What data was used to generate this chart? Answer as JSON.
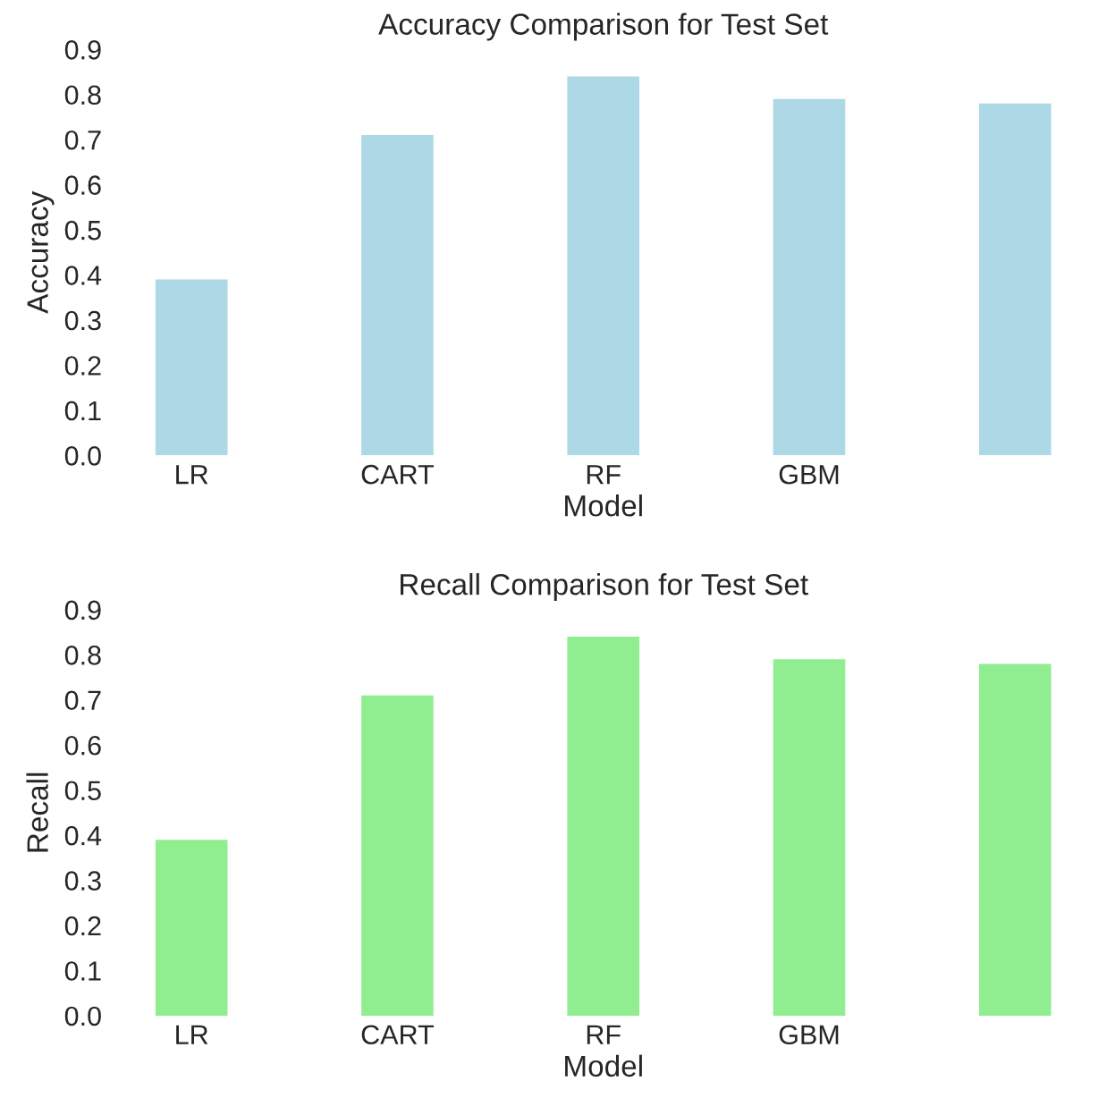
{
  "chart_data": [
    {
      "type": "bar",
      "title": "Accuracy Comparison for Test Set",
      "xlabel": "Model",
      "ylabel": "Accuracy",
      "categories": [
        "LR",
        "CART",
        "RF",
        "GBM",
        null
      ],
      "values": [
        0.39,
        0.71,
        0.84,
        0.79,
        0.78
      ],
      "color": "#add8e6",
      "ylim": [
        0,
        0.9
      ],
      "yticks": [
        {
          "value": 0,
          "label": "0.0"
        },
        0.1,
        0.2,
        0.3,
        0.4,
        0.5,
        0.6,
        0.7,
        0.8,
        0.9
      ],
      "grid": false,
      "legend": false
    },
    {
      "type": "bar",
      "title": "Recall Comparison for Test Set",
      "xlabel": "Model",
      "ylabel": "Recall",
      "categories": [
        "LR",
        "CART",
        "RF",
        "GBM",
        null
      ],
      "values": [
        0.39,
        0.71,
        0.84,
        0.79,
        0.78
      ],
      "color": "#90ee90",
      "ylim": [
        0,
        0.9
      ],
      "yticks": [
        {
          "value": 0,
          "label": "0.0"
        },
        0.1,
        0.2,
        0.3,
        0.4,
        0.5,
        0.6,
        0.7,
        0.8,
        0.9
      ],
      "grid": false,
      "legend": false
    }
  ]
}
